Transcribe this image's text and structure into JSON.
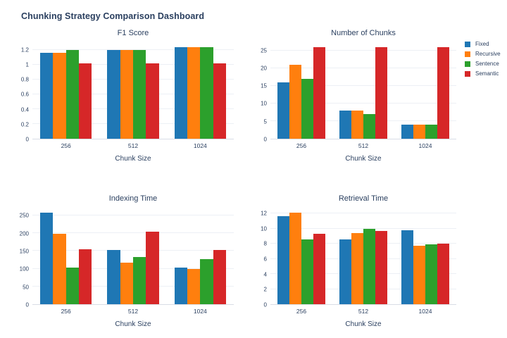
{
  "page": {
    "title": "Chunking Strategy Comparison Dashboard"
  },
  "colors": {
    "fixed": "#1f77b4",
    "recursive": "#ff7f0e",
    "sentence": "#2ca02c",
    "semantic": "#d62728",
    "text": "#2a3f5f",
    "gridline": "#edf0f5",
    "axis_line": "#d8dde6"
  },
  "legend": {
    "position": "top-right-outside",
    "items": [
      {
        "label": "Fixed",
        "color": "#1f77b4"
      },
      {
        "label": "Recursive",
        "color": "#ff7f0e"
      },
      {
        "label": "Sentence",
        "color": "#2ca02c"
      },
      {
        "label": "Semantic",
        "color": "#d62728"
      }
    ]
  },
  "chart_data": [
    {
      "type": "bar",
      "title": "F1 Score",
      "xlabel": "Chunk Size",
      "ylabel": "",
      "grid": true,
      "categories": [
        "256",
        "512",
        "1024"
      ],
      "yticks": [
        0,
        0.2,
        0.4,
        0.6,
        0.8,
        1,
        1.2
      ],
      "ytick_labels": [
        "0",
        "0.2",
        "0.4",
        "0.6",
        "0.8",
        "1",
        "1.2"
      ],
      "ylim": [
        0,
        1.3
      ],
      "series": [
        {
          "name": "Fixed",
          "color": "#1f77b4",
          "values": [
            1.16,
            1.2,
            1.23
          ]
        },
        {
          "name": "Recursive",
          "color": "#ff7f0e",
          "values": [
            1.16,
            1.2,
            1.23
          ]
        },
        {
          "name": "Sentence",
          "color": "#2ca02c",
          "values": [
            1.2,
            1.2,
            1.23
          ]
        },
        {
          "name": "Semantic",
          "color": "#d62728",
          "values": [
            1.02,
            1.02,
            1.02
          ]
        }
      ]
    },
    {
      "type": "bar",
      "title": "Number of Chunks",
      "xlabel": "Chunk Size",
      "ylabel": "",
      "grid": true,
      "categories": [
        "256",
        "512",
        "1024"
      ],
      "yticks": [
        0,
        5,
        10,
        15,
        20,
        25
      ],
      "ytick_labels": [
        "0",
        "5",
        "10",
        "15",
        "20",
        "25"
      ],
      "ylim": [
        0,
        27.3
      ],
      "series": [
        {
          "name": "Fixed",
          "color": "#1f77b4",
          "values": [
            16,
            8,
            4
          ]
        },
        {
          "name": "Recursive",
          "color": "#ff7f0e",
          "values": [
            21,
            8,
            4
          ]
        },
        {
          "name": "Sentence",
          "color": "#2ca02c",
          "values": [
            17,
            7,
            4
          ]
        },
        {
          "name": "Semantic",
          "color": "#d62728",
          "values": [
            26,
            26,
            26
          ]
        }
      ]
    },
    {
      "type": "bar",
      "title": "Indexing Time",
      "xlabel": "Chunk Size",
      "ylabel": "",
      "grid": true,
      "categories": [
        "256",
        "512",
        "1024"
      ],
      "yticks": [
        0,
        50,
        100,
        150,
        200,
        250
      ],
      "ytick_labels": [
        "0",
        "50",
        "100",
        "150",
        "200",
        "250"
      ],
      "ylim": [
        0,
        272
      ],
      "series": [
        {
          "name": "Fixed",
          "color": "#1f77b4",
          "values": [
            258,
            152,
            103
          ]
        },
        {
          "name": "Recursive",
          "color": "#ff7f0e",
          "values": [
            199,
            117,
            100
          ]
        },
        {
          "name": "Sentence",
          "color": "#2ca02c",
          "values": [
            104,
            134,
            128
          ]
        },
        {
          "name": "Semantic",
          "color": "#d62728",
          "values": [
            155,
            205,
            153
          ]
        }
      ]
    },
    {
      "type": "bar",
      "title": "Retrieval Time",
      "xlabel": "Chunk Size",
      "ylabel": "",
      "grid": true,
      "categories": [
        "256",
        "512",
        "1024"
      ],
      "yticks": [
        0,
        2,
        4,
        6,
        8,
        10,
        12
      ],
      "ytick_labels": [
        "0",
        "2",
        "4",
        "6",
        "8",
        "10",
        "12"
      ],
      "ylim": [
        0,
        12.75
      ],
      "series": [
        {
          "name": "Fixed",
          "color": "#1f77b4",
          "values": [
            11.6,
            8.6,
            9.8
          ]
        },
        {
          "name": "Recursive",
          "color": "#ff7f0e",
          "values": [
            12.1,
            9.4,
            7.7
          ]
        },
        {
          "name": "Sentence",
          "color": "#2ca02c",
          "values": [
            8.6,
            10.0,
            7.9
          ]
        },
        {
          "name": "Semantic",
          "color": "#d62728",
          "values": [
            9.3,
            9.7,
            8.0
          ]
        }
      ]
    }
  ]
}
